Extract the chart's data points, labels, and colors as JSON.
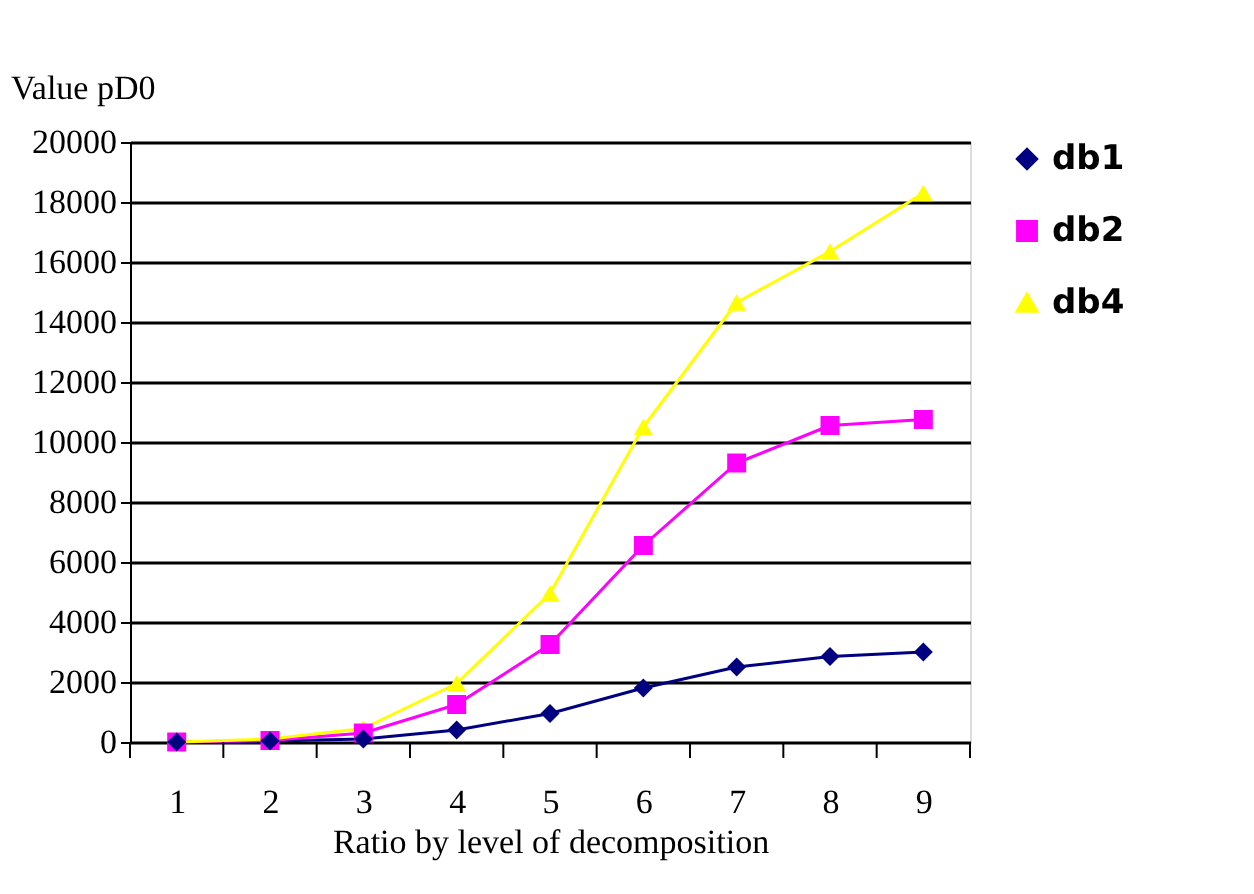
{
  "chart_data": {
    "type": "line",
    "xlabel": "Ratio by level of decomposition",
    "ylabel": "Value pD0",
    "categories": [
      "1",
      "2",
      "3",
      "4",
      "5",
      "6",
      "7",
      "8",
      "9"
    ],
    "series": [
      {
        "name": "db1",
        "color": "#000080",
        "marker": "diamond",
        "values": [
          0,
          30,
          100,
          400,
          950,
          1800,
          2500,
          2850,
          3000
        ]
      },
      {
        "name": "db2",
        "color": "#ff00ff",
        "marker": "square",
        "values": [
          0,
          50,
          300,
          1250,
          3250,
          6550,
          9300,
          10550,
          10750
        ]
      },
      {
        "name": "db4",
        "color": "#ffff00",
        "marker": "triangle",
        "values": [
          0,
          100,
          450,
          1950,
          4950,
          10500,
          14650,
          16350,
          18300
        ]
      }
    ],
    "ylim": [
      0,
      20000
    ],
    "yticks": [
      0,
      2000,
      4000,
      6000,
      8000,
      10000,
      12000,
      14000,
      16000,
      18000,
      20000
    ],
    "grid": "y",
    "legend": "top right",
    "line_style": "solid"
  }
}
